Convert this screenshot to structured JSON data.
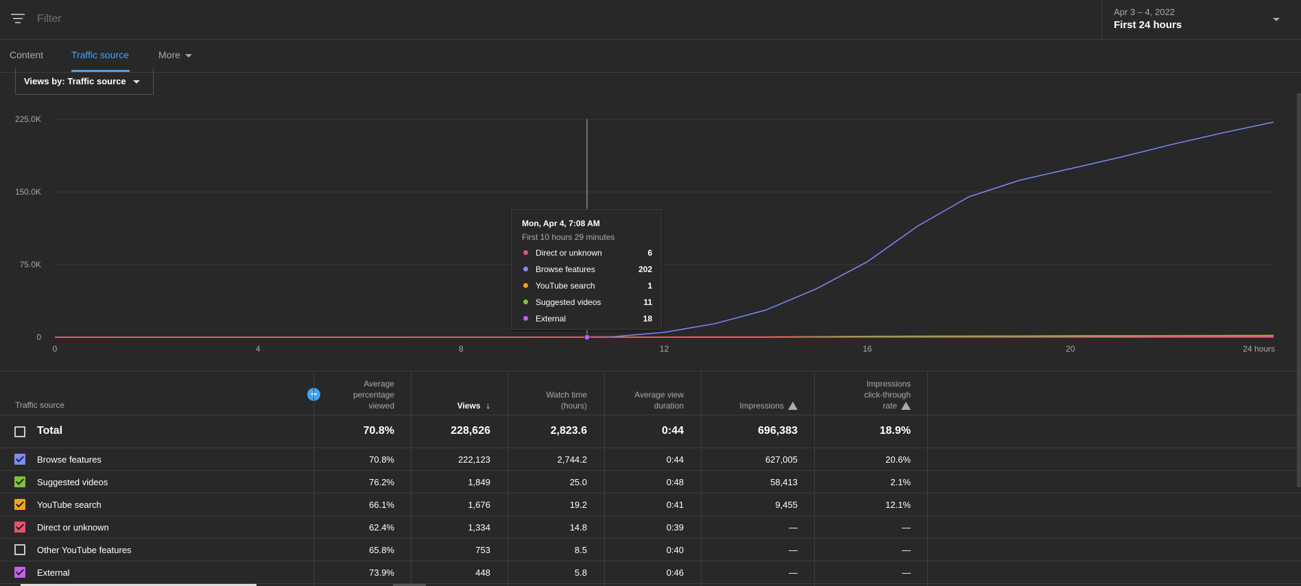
{
  "filter": {
    "placeholder": "Filter"
  },
  "date_picker": {
    "range": "Apr 3 – 4, 2022",
    "label": "First 24 hours"
  },
  "tabs": [
    {
      "label": "Content",
      "active": false
    },
    {
      "label": "Traffic source",
      "active": true
    },
    {
      "label": "More",
      "active": false
    }
  ],
  "views_by": {
    "label": "Views by: Traffic source"
  },
  "chart_data": {
    "type": "line",
    "title": "",
    "xlabel": "",
    "ylabel": "",
    "x_ticks": [
      "0",
      "4",
      "8",
      "12",
      "16",
      "20",
      "24 hours"
    ],
    "y_ticks": [
      "0",
      "75.0K",
      "150.0K",
      "225.0K"
    ],
    "xlim": [
      0,
      24
    ],
    "ylim": [
      0,
      225000
    ],
    "grid": true,
    "series": [
      {
        "name": "Browse features",
        "color": "#7a8cff",
        "x": [
          0,
          10,
          11,
          12,
          13,
          14,
          15,
          16,
          17,
          18,
          19,
          20,
          21,
          22,
          23,
          24
        ],
        "y": [
          0,
          0,
          500,
          5000,
          14000,
          28000,
          50000,
          78000,
          115000,
          145000,
          162000,
          174000,
          186000,
          199000,
          211000,
          222123
        ]
      },
      {
        "name": "Suggested videos",
        "color": "#7cc33a",
        "x": [
          0,
          14,
          16,
          20,
          24
        ],
        "y": [
          0,
          0,
          800,
          1400,
          1849
        ]
      },
      {
        "name": "YouTube search",
        "color": "#f4a21c",
        "x": [
          0,
          14,
          16,
          20,
          24
        ],
        "y": [
          0,
          300,
          900,
          1400,
          1676
        ]
      },
      {
        "name": "Direct or unknown",
        "color": "#e8536c",
        "x": [
          0,
          14,
          16,
          20,
          24
        ],
        "y": [
          0,
          200,
          700,
          1100,
          1334
        ]
      },
      {
        "name": "External",
        "color": "#c35ef5",
        "x": [
          0,
          14,
          18,
          22,
          24
        ],
        "y": [
          0,
          100,
          200,
          300,
          448
        ]
      }
    ],
    "crosshair_x": 10.48,
    "tooltip": {
      "title": "Mon, Apr 4, 7:08 AM",
      "subtitle": "First 10 hours 29 minutes",
      "rows": [
        {
          "name": "Direct or unknown",
          "value": "6",
          "color": "#e8536c"
        },
        {
          "name": "Browse features",
          "value": "202",
          "color": "#7a8cff"
        },
        {
          "name": "YouTube search",
          "value": "1",
          "color": "#f4a21c"
        },
        {
          "name": "Suggested videos",
          "value": "11",
          "color": "#7cc33a"
        },
        {
          "name": "External",
          "value": "18",
          "color": "#c35ef5"
        }
      ]
    }
  },
  "table": {
    "headers": {
      "source": "Traffic source",
      "avg_pct": [
        "Average",
        "percentage",
        "viewed"
      ],
      "views": "Views",
      "watch_time": [
        "Watch time",
        "(hours)"
      ],
      "avg_duration": [
        "Average view",
        "duration"
      ],
      "impressions": "Impressions",
      "ctr": [
        "Impressions",
        "click-through",
        "rate"
      ]
    },
    "total": {
      "label": "Total",
      "avg_pct": "70.8%",
      "views": "228,626",
      "watch_time": "2,823.6",
      "avg_duration": "0:44",
      "impressions": "696,383",
      "ctr": "18.9%"
    },
    "rows": [
      {
        "label": "Browse features",
        "checked": true,
        "color": "#7a8cff",
        "avg_pct": "70.8%",
        "views": "222,123",
        "watch_time": "2,744.2",
        "avg_duration": "0:44",
        "impressions": "627,005",
        "ctr": "20.6%"
      },
      {
        "label": "Suggested videos",
        "checked": true,
        "color": "#7cc33a",
        "avg_pct": "76.2%",
        "views": "1,849",
        "watch_time": "25.0",
        "avg_duration": "0:48",
        "impressions": "58,413",
        "ctr": "2.1%"
      },
      {
        "label": "YouTube search",
        "checked": true,
        "color": "#f4a21c",
        "avg_pct": "66.1%",
        "views": "1,676",
        "watch_time": "19.2",
        "avg_duration": "0:41",
        "impressions": "9,455",
        "ctr": "12.1%"
      },
      {
        "label": "Direct or unknown",
        "checked": true,
        "color": "#e8536c",
        "avg_pct": "62.4%",
        "views": "1,334",
        "watch_time": "14.8",
        "avg_duration": "0:39",
        "impressions": "—",
        "ctr": "—"
      },
      {
        "label": "Other YouTube features",
        "checked": false,
        "color": "",
        "avg_pct": "65.8%",
        "views": "753",
        "watch_time": "8.5",
        "avg_duration": "0:40",
        "impressions": "—",
        "ctr": "—"
      },
      {
        "label": "External",
        "checked": true,
        "color": "#c35ef5",
        "avg_pct": "73.9%",
        "views": "448",
        "watch_time": "5.8",
        "avg_duration": "0:46",
        "impressions": "—",
        "ctr": "—"
      }
    ]
  }
}
